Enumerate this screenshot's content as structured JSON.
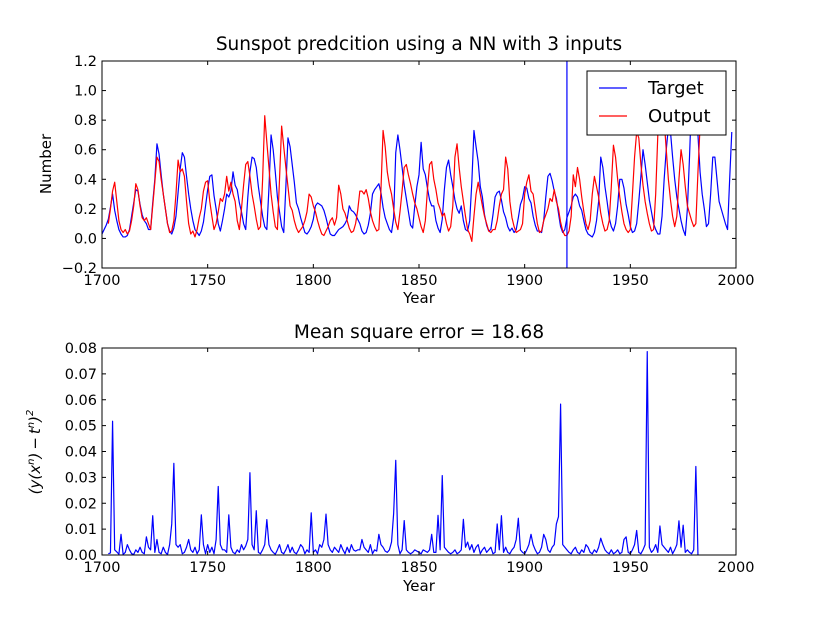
{
  "colors": {
    "target": "#0000ff",
    "output": "#ff0000",
    "error": "#0000ff",
    "divider": "#0000ff"
  },
  "chart_data": [
    {
      "type": "line",
      "title": "Sunspot predcition using a NN with 3 inputs",
      "xlabel": "Year",
      "ylabel": "Number",
      "xlim": [
        1700,
        2000
      ],
      "ylim": [
        -0.2,
        1.2
      ],
      "xticks": [
        1700,
        1750,
        1800,
        1850,
        1900,
        1950,
        2000
      ],
      "yticks": [
        -0.2,
        0.0,
        0.2,
        0.4,
        0.6,
        0.8,
        1.0,
        1.2
      ],
      "xtick_labels": [
        "1700",
        "1750",
        "1800",
        "1850",
        "1900",
        "1950",
        "2000"
      ],
      "ytick_labels": [
        "−0.2",
        "0.0",
        "0.2",
        "0.4",
        "0.6",
        "0.8",
        "1.0",
        "1.2"
      ],
      "grid": false,
      "legend_position": "top-right",
      "vertical_line_x": 1920,
      "series": [
        {
          "name": "Target",
          "color": "#0000ff",
          "x_start": 1700,
          "values": [
            0.03,
            0.06,
            0.09,
            0.13,
            0.21,
            0.3,
            0.19,
            0.12,
            0.06,
            0.03,
            0.01,
            0.01,
            0.02,
            0.06,
            0.15,
            0.24,
            0.33,
            0.32,
            0.23,
            0.16,
            0.12,
            0.1,
            0.06,
            0.06,
            0.24,
            0.4,
            0.64,
            0.57,
            0.43,
            0.3,
            0.2,
            0.1,
            0.05,
            0.03,
            0.07,
            0.15,
            0.31,
            0.47,
            0.58,
            0.55,
            0.42,
            0.3,
            0.2,
            0.12,
            0.06,
            0.04,
            0.02,
            0.05,
            0.11,
            0.22,
            0.33,
            0.42,
            0.43,
            0.29,
            0.2,
            0.1,
            0.05,
            0.12,
            0.2,
            0.3,
            0.28,
            0.32,
            0.45,
            0.36,
            0.33,
            0.24,
            0.18,
            0.1,
            0.06,
            0.28,
            0.45,
            0.55,
            0.54,
            0.48,
            0.35,
            0.25,
            0.15,
            0.08,
            0.06,
            0.34,
            0.7,
            0.6,
            0.45,
            0.28,
            0.18,
            0.08,
            0.04,
            0.35,
            0.68,
            0.62,
            0.5,
            0.38,
            0.24,
            0.2,
            0.14,
            0.09,
            0.04,
            0.03,
            0.05,
            0.08,
            0.13,
            0.22,
            0.24,
            0.23,
            0.22,
            0.19,
            0.14,
            0.08,
            0.03,
            0.02,
            0.02,
            0.04,
            0.06,
            0.07,
            0.08,
            0.1,
            0.13,
            0.22,
            0.19,
            0.18,
            0.16,
            0.13,
            0.1,
            0.05,
            0.03,
            0.04,
            0.09,
            0.17,
            0.3,
            0.33,
            0.35,
            0.37,
            0.31,
            0.21,
            0.14,
            0.1,
            0.06,
            0.04,
            0.14,
            0.58,
            0.7,
            0.6,
            0.48,
            0.36,
            0.27,
            0.18,
            0.09,
            0.07,
            0.22,
            0.35,
            0.43,
            0.65,
            0.47,
            0.43,
            0.34,
            0.26,
            0.22,
            0.22,
            0.12,
            0.07,
            0.04,
            0.13,
            0.33,
            0.48,
            0.53,
            0.43,
            0.35,
            0.26,
            0.2,
            0.17,
            0.22,
            0.12,
            0.06,
            0.05,
            0.12,
            0.38,
            0.73,
            0.62,
            0.52,
            0.35,
            0.28,
            0.16,
            0.09,
            0.05,
            0.06,
            0.16,
            0.28,
            0.31,
            0.32,
            0.26,
            0.18,
            0.14,
            0.08,
            0.05,
            0.07,
            0.04,
            0.06,
            0.14,
            0.23,
            0.27,
            0.35,
            0.34,
            0.27,
            0.24,
            0.15,
            0.09,
            0.05,
            0.05,
            0.04,
            0.12,
            0.28,
            0.42,
            0.44,
            0.39,
            0.32,
            0.27,
            0.17,
            0.08,
            0.04,
            0.06,
            0.14,
            0.18,
            0.22,
            0.28,
            0.3,
            0.28,
            0.22,
            0.19,
            0.12,
            0.06,
            0.03,
            0.02,
            0.01,
            0.04,
            0.12,
            0.25,
            0.55,
            0.48,
            0.35,
            0.25,
            0.14,
            0.08,
            0.05,
            0.1,
            0.22,
            0.4,
            0.4,
            0.34,
            0.23,
            0.16,
            0.08,
            0.04,
            0.05,
            0.1,
            0.25,
            0.42,
            0.6,
            0.5,
            0.38,
            0.26,
            0.18,
            0.1,
            0.06,
            0.03,
            0.03,
            0.15,
            0.4,
            0.6,
            0.75,
            0.72,
            0.55,
            0.4,
            0.28,
            0.2,
            0.12,
            0.06,
            0.02,
            0.2,
            0.55,
            0.95,
            0.9,
            0.8,
            0.7,
            0.45,
            0.3,
            0.2,
            0.08,
            0.1,
            0.3,
            0.55,
            0.55,
            0.4,
            0.25,
            0.2,
            0.15,
            0.1,
            0.06,
            0.4,
            0.72
          ],
          "note_values_end": 1979
        },
        {
          "name": "Output",
          "color": "#ff0000",
          "x_start": 1703,
          "values": [
            0.1,
            0.2,
            0.32,
            0.38,
            0.25,
            0.12,
            0.06,
            0.04,
            0.06,
            0.03,
            0.05,
            0.12,
            0.22,
            0.37,
            0.33,
            0.22,
            0.14,
            0.12,
            0.14,
            0.1,
            0.06,
            0.22,
            0.38,
            0.55,
            0.52,
            0.4,
            0.3,
            0.2,
            0.1,
            0.04,
            0.05,
            0.12,
            0.3,
            0.53,
            0.45,
            0.47,
            0.42,
            0.25,
            0.1,
            0.03,
            0.05,
            0.01,
            0.06,
            0.14,
            0.2,
            0.32,
            0.38,
            0.39,
            0.25,
            0.15,
            0.06,
            0.1,
            0.18,
            0.27,
            0.25,
            0.3,
            0.42,
            0.32,
            0.38,
            0.3,
            0.25,
            0.12,
            0.06,
            0.2,
            0.36,
            0.5,
            0.52,
            0.42,
            0.3,
            0.22,
            0.13,
            0.06,
            0.08,
            0.4,
            0.83,
            0.65,
            0.48,
            0.3,
            0.18,
            0.08,
            0.06,
            0.4,
            0.76,
            0.62,
            0.48,
            0.35,
            0.22,
            0.19,
            0.12,
            0.07,
            0.04,
            0.06,
            0.08,
            0.12,
            0.18,
            0.3,
            0.28,
            0.22,
            0.18,
            0.12,
            0.07,
            0.03,
            0.02,
            0.05,
            0.08,
            0.12,
            0.14,
            0.09,
            0.14,
            0.36,
            0.3,
            0.2,
            0.17,
            0.12,
            0.07,
            0.04,
            0.05,
            0.1,
            0.19,
            0.32,
            0.32,
            0.3,
            0.33,
            0.27,
            0.18,
            0.12,
            0.08,
            0.05,
            0.06,
            0.33,
            0.73,
            0.62,
            0.45,
            0.36,
            0.3,
            0.2,
            0.11,
            0.06,
            0.18,
            0.32,
            0.48,
            0.5,
            0.43,
            0.37,
            0.3,
            0.24,
            0.2,
            0.14,
            0.08,
            0.04,
            0.12,
            0.33,
            0.5,
            0.52,
            0.4,
            0.33,
            0.24,
            0.2,
            0.15,
            0.17,
            0.1,
            0.05,
            0.08,
            0.22,
            0.55,
            0.64,
            0.48,
            0.35,
            0.25,
            0.15,
            0.06,
            0.03,
            -0.02,
            0.15,
            0.3,
            0.38,
            0.3,
            0.22,
            0.15,
            0.1,
            0.05,
            0.04,
            0.06,
            0.06,
            0.12,
            0.22,
            0.3,
            0.33,
            0.55,
            0.47,
            0.25,
            0.14,
            0.08,
            0.04,
            0.05,
            0.06,
            0.1,
            0.3,
            0.38,
            0.43,
            0.32,
            0.3,
            0.2,
            0.1,
            0.04,
            0.05,
            0.12,
            0.16,
            0.2,
            0.27,
            0.25,
            0.33,
            0.25,
            0.2,
            0.11,
            0.05,
            0.02,
            0.02,
            0.05,
            0.15,
            0.43,
            0.35,
            0.48,
            0.4,
            0.28,
            0.18,
            0.1,
            0.06,
            0.12,
            0.3,
            0.42,
            0.35,
            0.28,
            0.17,
            0.1,
            0.05,
            0.06,
            0.12,
            0.35,
            0.63,
            0.55,
            0.4,
            0.28,
            0.18,
            0.1,
            0.06,
            0.04,
            0.06,
            0.3,
            0.55,
            0.72,
            0.68,
            0.5,
            0.36,
            0.25,
            0.17,
            0.1,
            0.05,
            0.06,
            0.3,
            0.7,
            0.92,
            0.85,
            0.8,
            0.6,
            0.4,
            0.26,
            0.15,
            0.08,
            0.15,
            0.4,
            0.6,
            0.5,
            0.35,
            0.22,
            0.17,
            0.12,
            0.08,
            0.1,
            0.45,
            0.76
          ]
        }
      ]
    },
    {
      "type": "line",
      "title": "Mean square error = 18.68",
      "xlabel": "Year",
      "ylabel": "(y(x^n) − t^n)^2",
      "ylabel_parts": {
        "open": "(",
        "y": "y",
        "lp": "(",
        "x": "x",
        "n1": "n",
        "rp": ")",
        "minus": "−",
        "t": "t",
        "n2": "n",
        "close": ")",
        "sq": "2"
      },
      "xlim": [
        1700,
        2000
      ],
      "ylim": [
        0.0,
        0.08
      ],
      "xticks": [
        1700,
        1750,
        1800,
        1850,
        1900,
        1950,
        2000
      ],
      "yticks": [
        0.0,
        0.01,
        0.02,
        0.03,
        0.04,
        0.05,
        0.06,
        0.07,
        0.08
      ],
      "xtick_labels": [
        "1700",
        "1750",
        "1800",
        "1850",
        "1900",
        "1950",
        "2000"
      ],
      "ytick_labels": [
        "0.00",
        "0.01",
        "0.02",
        "0.03",
        "0.04",
        "0.05",
        "0.06",
        "0.07",
        "0.08"
      ],
      "grid": false,
      "series": [
        {
          "name": "",
          "color": "#0000ff",
          "x_start": 1703,
          "values": [
            0.0005,
            0.0008,
            0.0517,
            0.002,
            0.0012,
            0.0003,
            0.008,
            0.0002,
            0.001,
            0.004,
            0.002,
            0.0005,
            0.0002,
            0.002,
            0.001,
            0.003,
            0.001,
            0.0005,
            0.007,
            0.003,
            0.002,
            0.0152,
            0.001,
            0.006,
            0.001,
            0.0005,
            0.003,
            0.001,
            0.0002,
            0.004,
            0.012,
            0.0354,
            0.004,
            0.003,
            0.004,
            0.0005,
            0.001,
            0.003,
            0.006,
            0.002,
            0.001,
            0.003,
            0.0005,
            0.002,
            0.0155,
            0.004,
            0.0005,
            0.004,
            0.001,
            0.003,
            0.0005,
            0.006,
            0.0265,
            0.004,
            0.002,
            0.002,
            0.001,
            0.0155,
            0.003,
            0.001,
            0.0005,
            0.002,
            0.001,
            0.004,
            0.002,
            0.0035,
            0.006,
            0.0318,
            0.004,
            0.002,
            0.0171,
            0.001,
            0.0005,
            0.002,
            0.004,
            0.0137,
            0.004,
            0.002,
            0.001,
            0.0003,
            0.002,
            0.004,
            0.001,
            0.0005,
            0.002,
            0.004,
            0.001,
            0.003,
            0.001,
            0.0005,
            0.002,
            0.004,
            0.003,
            0.0005,
            0.002,
            0.001,
            0.0163,
            0.001,
            0.002,
            0.0005,
            0.004,
            0.003,
            0.006,
            0.0158,
            0.004,
            0.002,
            0.001,
            0.003,
            0.002,
            0.001,
            0.004,
            0.002,
            0.0005,
            0.003,
            0.001,
            0.004,
            0.002,
            0.0015,
            0.002,
            0.002,
            0.006,
            0.003,
            0.002,
            0.001,
            0.004,
            0.0005,
            0.002,
            0.0015,
            0.008,
            0.004,
            0.003,
            0.0015,
            0.001,
            0.002,
            0.005,
            0.016,
            0.0366,
            0.004,
            0.0005,
            0.002,
            0.0133,
            0.002,
            0.001,
            0.0005,
            0.001,
            0.002,
            0.0015,
            0.001,
            0.0005,
            0.002,
            0.0015,
            0.001,
            0.002,
            0.008,
            0.001,
            0.001,
            0.0153,
            0.002,
            0.0307,
            0.003,
            0.002,
            0.001,
            0.0005,
            0.001,
            0.002,
            0.0005,
            0.001,
            0.002,
            0.0138,
            0.003,
            0.005,
            0.002,
            0.004,
            0.001,
            0.003,
            0.004,
            0.0005,
            0.002,
            0.003,
            0.001,
            0.002,
            0.003,
            0.0005,
            0.001,
            0.012,
            0.002,
            0.0152,
            0.001,
            0.003,
            0.001,
            0.0005,
            0.002,
            0.003,
            0.006,
            0.0142,
            0.002,
            0.001,
            0.0005,
            0.002,
            0.004,
            0.008,
            0.004,
            0.002,
            0.0005,
            0.001,
            0.003,
            0.008,
            0.006,
            0.002,
            0.001,
            0.003,
            0.004,
            0.012,
            0.0148,
            0.0583,
            0.004,
            0.003,
            0.002,
            0.001,
            0.0005,
            0.002,
            0.003,
            0.001,
            0.0005,
            0.002,
            0.001,
            0.004,
            0.003,
            0.001,
            0.0005,
            0.002,
            0.001,
            0.003,
            0.0065,
            0.004,
            0.002,
            0.001,
            0.0005,
            0.002,
            0.0005,
            0.001,
            0.002,
            0.0005,
            0.001,
            0.006,
            0.007,
            0.001,
            0.0005,
            0.002,
            0.004,
            0.0095,
            0.001,
            0.0005,
            0.002,
            0.004,
            0.0786,
            0.003,
            0.001,
            0.002,
            0.004,
            0.001,
            0.0112,
            0.004,
            0.003,
            0.002,
            0.001,
            0.003,
            0.0005,
            0.002,
            0.004,
            0.0132,
            0.003,
            0.0115,
            0.001,
            0.002,
            0.001,
            0.0005,
            0.002,
            0.0342,
            0.0
          ]
        }
      ]
    }
  ]
}
